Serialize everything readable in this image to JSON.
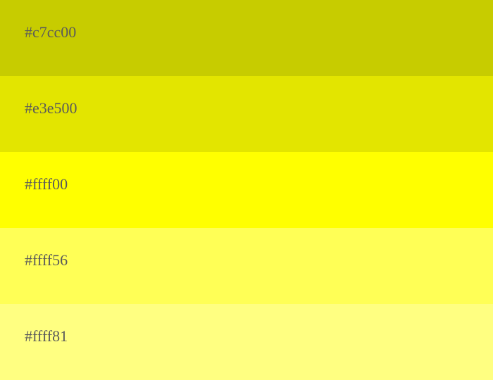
{
  "swatches": [
    {
      "label": "#c7cc00",
      "color": "#c7cc00"
    },
    {
      "label": "#e3e500",
      "color": "#e3e500"
    },
    {
      "label": "#ffff00",
      "color": "#ffff00"
    },
    {
      "label": "#ffff56",
      "color": "#ffff56"
    },
    {
      "label": "#ffff81",
      "color": "#ffff81"
    }
  ]
}
